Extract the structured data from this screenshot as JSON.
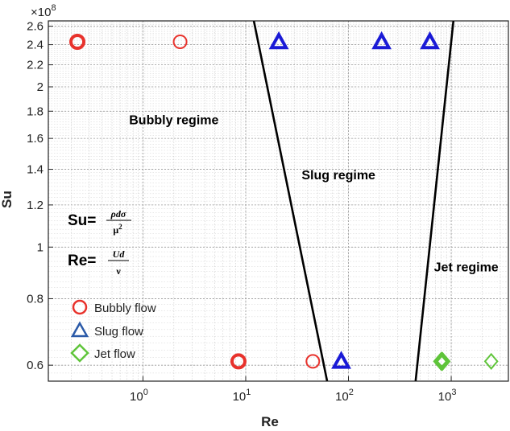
{
  "chart_data": {
    "type": "scatter",
    "xlabel": "Re",
    "ylabel": "Su",
    "x_scale": "log",
    "y_scale": "log",
    "y_multiplier_label": "×10^8",
    "xlim": [
      0.12,
      3600
    ],
    "ylim": [
      0.56,
      2.66
    ],
    "grid": true,
    "x_ticks": [
      {
        "value": 1,
        "base": "10",
        "exp": "0"
      },
      {
        "value": 10,
        "base": "10",
        "exp": "1"
      },
      {
        "value": 100,
        "base": "10",
        "exp": "2"
      },
      {
        "value": 1000,
        "base": "10",
        "exp": "3"
      }
    ],
    "y_ticks": [
      {
        "value": 0.6,
        "label": "0.6"
      },
      {
        "value": 0.8,
        "label": "0.8"
      },
      {
        "value": 1.0,
        "label": "1"
      },
      {
        "value": 1.2,
        "label": "1.2"
      },
      {
        "value": 1.4,
        "label": "1.4"
      },
      {
        "value": 1.6,
        "label": "1.6"
      },
      {
        "value": 1.8,
        "label": "1.8"
      },
      {
        "value": 2.0,
        "label": "2"
      },
      {
        "value": 2.2,
        "label": "2.2"
      },
      {
        "value": 2.4,
        "label": "2.4"
      },
      {
        "value": 2.6,
        "label": "2.6"
      }
    ],
    "series": [
      {
        "name": "Bubbly flow",
        "marker": "circle",
        "color": "#e8322c",
        "points": [
          {
            "x": 0.23,
            "y": 2.43,
            "bold": true
          },
          {
            "x": 2.3,
            "y": 2.43,
            "bold": false
          },
          {
            "x": 8.5,
            "y": 0.61,
            "bold": true
          },
          {
            "x": 45,
            "y": 0.61,
            "bold": false
          }
        ]
      },
      {
        "name": "Slug flow",
        "marker": "triangle",
        "color": "#1a1ad6",
        "points": [
          {
            "x": 21,
            "y": 2.43,
            "bold": true
          },
          {
            "x": 210,
            "y": 2.43,
            "bold": true
          },
          {
            "x": 620,
            "y": 2.43,
            "bold": true
          },
          {
            "x": 85,
            "y": 0.61,
            "bold": true
          }
        ]
      },
      {
        "name": "Jet flow",
        "marker": "diamond",
        "color": "#5fc43a",
        "points": [
          {
            "x": 800,
            "y": 0.61,
            "bold": true
          },
          {
            "x": 820,
            "y": 0.61,
            "bold": true
          },
          {
            "x": 2450,
            "y": 0.61,
            "bold": false
          }
        ]
      }
    ],
    "boundaries": [
      {
        "from": [
          12,
          2.66
        ],
        "to": [
          62,
          0.56
        ]
      },
      {
        "from": [
          1050,
          2.66
        ],
        "to": [
          450,
          0.56
        ]
      }
    ],
    "annotations": [
      {
        "text": "Bubbly regime",
        "x": 2.0,
        "y": 1.7
      },
      {
        "text": "Slug regime",
        "x": 80,
        "y": 1.34
      },
      {
        "text": "Jet regime",
        "x": 1400,
        "y": 0.9
      }
    ],
    "formulas": {
      "su_lhs": "Su=",
      "su_num": "ρdσ",
      "su_den": "μ",
      "su_den_exp": "2",
      "re_lhs": "Re=",
      "re_num": "Ud",
      "re_den": "ν"
    },
    "legend": {
      "placement": "lower-left",
      "items": [
        "Bubbly flow",
        "Slug flow",
        "Jet flow"
      ]
    }
  }
}
